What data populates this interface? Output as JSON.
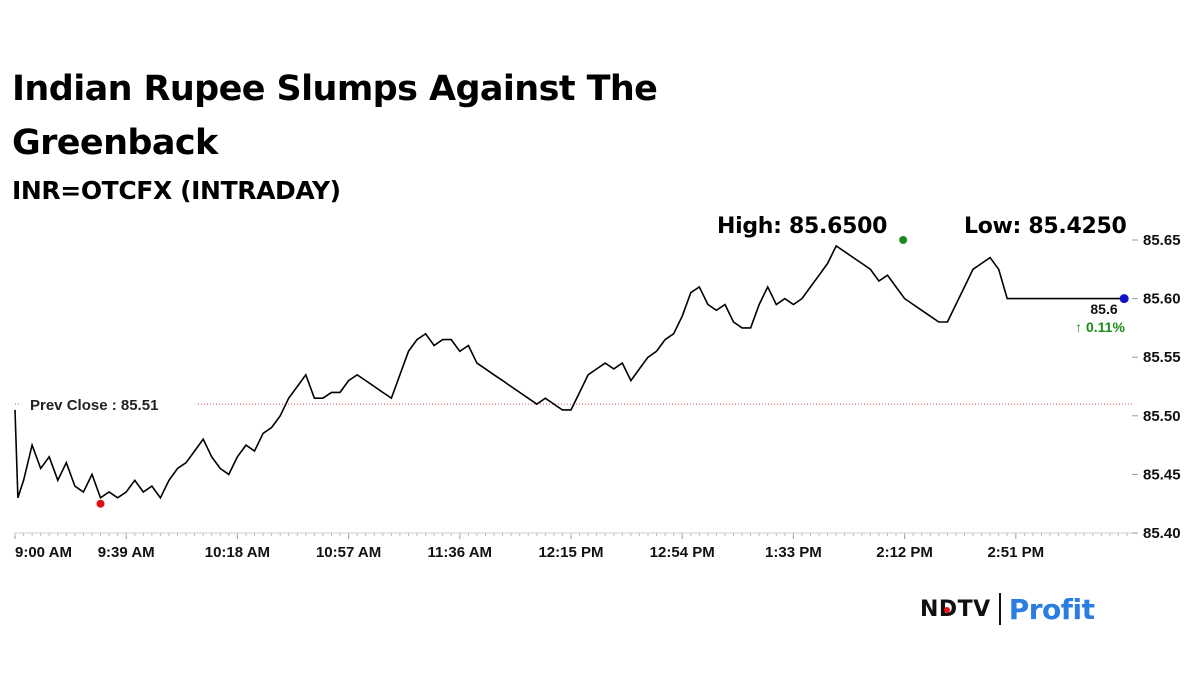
{
  "title": "Indian Rupee Slumps Against The Greenback",
  "subtitle": "INR=OTCFX (INTRADAY)",
  "high_label": "High: 85.6500",
  "low_label": "Low: 85.4250",
  "prev_close_label": "Prev Close : 85.51",
  "last_price_label": "85.6",
  "change_label": "↑ 0.11%",
  "brand": {
    "ndtv": "NDTV",
    "profit": "Profit"
  },
  "colors": {
    "line": "#000000",
    "prev_close_line": "#e05050",
    "high_marker": "#1a8c1a",
    "low_marker": "#e01010",
    "last_marker": "#1010c8",
    "change_up": "#1a8c1a",
    "profit_brand": "#2a7de1"
  },
  "chart_data": {
    "type": "line",
    "title": "Indian Rupee Slumps Against The Greenback",
    "subtitle": "INR=OTCFX (INTRADAY)",
    "xlabel": "",
    "ylabel": "",
    "x_ticks": [
      "9:00 AM",
      "9:39 AM",
      "10:18 AM",
      "10:57 AM",
      "11:36 AM",
      "12:15 PM",
      "12:54 PM",
      "1:33 PM",
      "2:12 PM",
      "2:51 PM"
    ],
    "y_ticks": [
      "85.40",
      "85.45",
      "85.50",
      "85.55",
      "85.60",
      "85.65"
    ],
    "ylim": [
      85.4,
      85.66
    ],
    "xlim": [
      "9:00 AM",
      "3:30 PM"
    ],
    "grid": false,
    "prev_close": 85.51,
    "high": 85.65,
    "low": 85.425,
    "last": 85.6,
    "change_pct": 0.11,
    "series": [
      {
        "x": [
          "9:00 AM",
          "9:01 AM",
          "9:03 AM",
          "9:06 AM",
          "9:09 AM",
          "9:12 AM",
          "9:15 AM",
          "9:18 AM",
          "9:21 AM",
          "9:24 AM",
          "9:27 AM",
          "9:30 AM",
          "9:33 AM",
          "9:36 AM",
          "9:39 AM",
          "9:42 AM",
          "9:45 AM",
          "9:48 AM",
          "9:51 AM",
          "9:54 AM",
          "9:57 AM",
          "10:00 AM",
          "10:03 AM",
          "10:06 AM",
          "10:09 AM",
          "10:12 AM",
          "10:15 AM",
          "10:18 AM",
          "10:21 AM",
          "10:24 AM",
          "10:27 AM",
          "10:30 AM",
          "10:33 AM",
          "10:36 AM",
          "10:39 AM",
          "10:42 AM",
          "10:45 AM",
          "10:48 AM",
          "10:51 AM",
          "10:54 AM",
          "10:57 AM",
          "11:00 AM",
          "11:03 AM",
          "11:06 AM",
          "11:09 AM",
          "11:12 AM",
          "11:15 AM",
          "11:18 AM",
          "11:21 AM",
          "11:24 AM",
          "11:27 AM",
          "11:30 AM",
          "11:33 AM",
          "11:36 AM",
          "11:39 AM",
          "11:42 AM",
          "11:45 AM",
          "11:48 AM",
          "11:51 AM",
          "11:54 AM",
          "11:57 AM",
          "12:00 PM",
          "12:03 PM",
          "12:06 PM",
          "12:09 PM",
          "12:12 PM",
          "12:15 PM",
          "12:18 PM",
          "12:21 PM",
          "12:24 PM",
          "12:27 PM",
          "12:30 PM",
          "12:33 PM",
          "12:36 PM",
          "12:39 PM",
          "12:42 PM",
          "12:45 PM",
          "12:48 PM",
          "12:51 PM",
          "12:54 PM",
          "12:57 PM",
          "1:00 PM",
          "1:03 PM",
          "1:06 PM",
          "1:09 PM",
          "1:12 PM",
          "1:15 PM",
          "1:18 PM",
          "1:21 PM",
          "1:24 PM",
          "1:27 PM",
          "1:30 PM",
          "1:33 PM",
          "1:36 PM",
          "1:39 PM",
          "1:42 PM",
          "1:45 PM",
          "1:48 PM",
          "1:51 PM",
          "1:54 PM",
          "1:57 PM",
          "2:00 PM",
          "2:03 PM",
          "2:06 PM",
          "2:09 PM",
          "2:12 PM",
          "2:15 PM",
          "2:18 PM",
          "2:21 PM",
          "2:24 PM",
          "2:27 PM",
          "2:30 PM",
          "2:33 PM",
          "2:36 PM",
          "2:39 PM",
          "2:42 PM",
          "2:45 PM",
          "2:48 PM",
          "2:51 PM",
          "2:54 PM",
          "2:57 PM",
          "3:00 PM",
          "3:03 PM",
          "3:06 PM",
          "3:09 PM",
          "3:12 PM",
          "3:15 PM",
          "3:18 PM",
          "3:21 PM",
          "3:24 PM",
          "3:27 PM",
          "3:29 PM"
        ],
        "values": [
          85.505,
          85.43,
          85.445,
          85.475,
          85.455,
          85.465,
          85.445,
          85.46,
          85.44,
          85.435,
          85.45,
          85.43,
          85.435,
          85.43,
          85.435,
          85.445,
          85.435,
          85.44,
          85.43,
          85.445,
          85.455,
          85.46,
          85.47,
          85.48,
          85.465,
          85.455,
          85.45,
          85.465,
          85.475,
          85.47,
          85.485,
          85.49,
          85.5,
          85.515,
          85.525,
          85.535,
          85.515,
          85.515,
          85.52,
          85.52,
          85.53,
          85.535,
          85.53,
          85.525,
          85.52,
          85.515,
          85.535,
          85.555,
          85.565,
          85.57,
          85.56,
          85.565,
          85.565,
          85.555,
          85.56,
          85.545,
          85.54,
          85.535,
          85.53,
          85.525,
          85.52,
          85.515,
          85.51,
          85.515,
          85.51,
          85.505,
          85.505,
          85.52,
          85.535,
          85.54,
          85.545,
          85.54,
          85.545,
          85.53,
          85.54,
          85.55,
          85.555,
          85.565,
          85.57,
          85.585,
          85.605,
          85.61,
          85.595,
          85.59,
          85.595,
          85.58,
          85.575,
          85.575,
          85.595,
          85.61,
          85.595,
          85.6,
          85.595,
          85.6,
          85.61,
          85.62,
          85.63,
          85.645,
          85.64,
          85.635,
          85.63,
          85.625,
          85.615,
          85.62,
          85.61,
          85.6,
          85.595,
          85.59,
          85.585,
          85.58,
          85.58,
          85.595,
          85.61,
          85.625,
          85.63,
          85.635,
          85.625,
          85.6,
          85.6,
          85.6,
          85.6,
          85.6,
          85.6,
          85.6,
          85.6,
          85.6,
          85.6,
          85.6,
          85.6,
          85.6,
          85.6,
          85.6
        ]
      }
    ]
  }
}
